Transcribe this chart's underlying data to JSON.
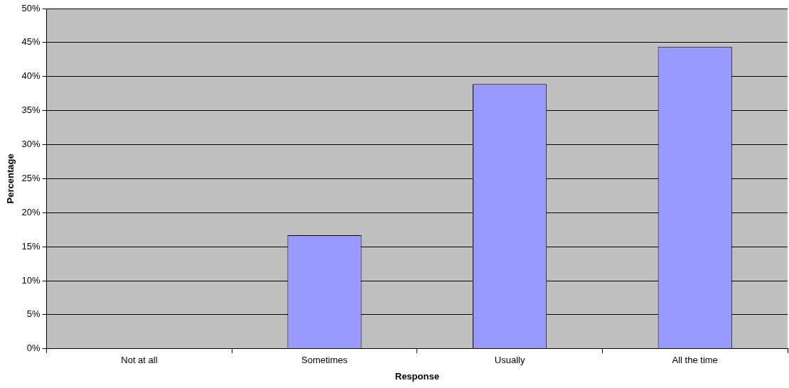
{
  "chart_data": {
    "type": "bar",
    "xlabel": "Response",
    "ylabel": "Percentage",
    "categories": [
      "Not at all",
      "Sometimes",
      "Usually",
      "All the time"
    ],
    "values": [
      0,
      16.7,
      38.9,
      44.4
    ],
    "color": "#9999ff",
    "ylim": [
      0,
      50
    ],
    "yticks": [
      {
        "value": 0,
        "label": "0%"
      },
      {
        "value": 5,
        "label": "5%"
      },
      {
        "value": 10,
        "label": "10%"
      },
      {
        "value": 15,
        "label": "15%"
      },
      {
        "value": 20,
        "label": "20%"
      },
      {
        "value": 25,
        "label": "25%"
      },
      {
        "value": 30,
        "label": "30%"
      },
      {
        "value": 35,
        "label": "35%"
      },
      {
        "value": 40,
        "label": "40%"
      },
      {
        "value": 45,
        "label": "45%"
      },
      {
        "value": 50,
        "label": "50%"
      }
    ],
    "grid": "y"
  }
}
